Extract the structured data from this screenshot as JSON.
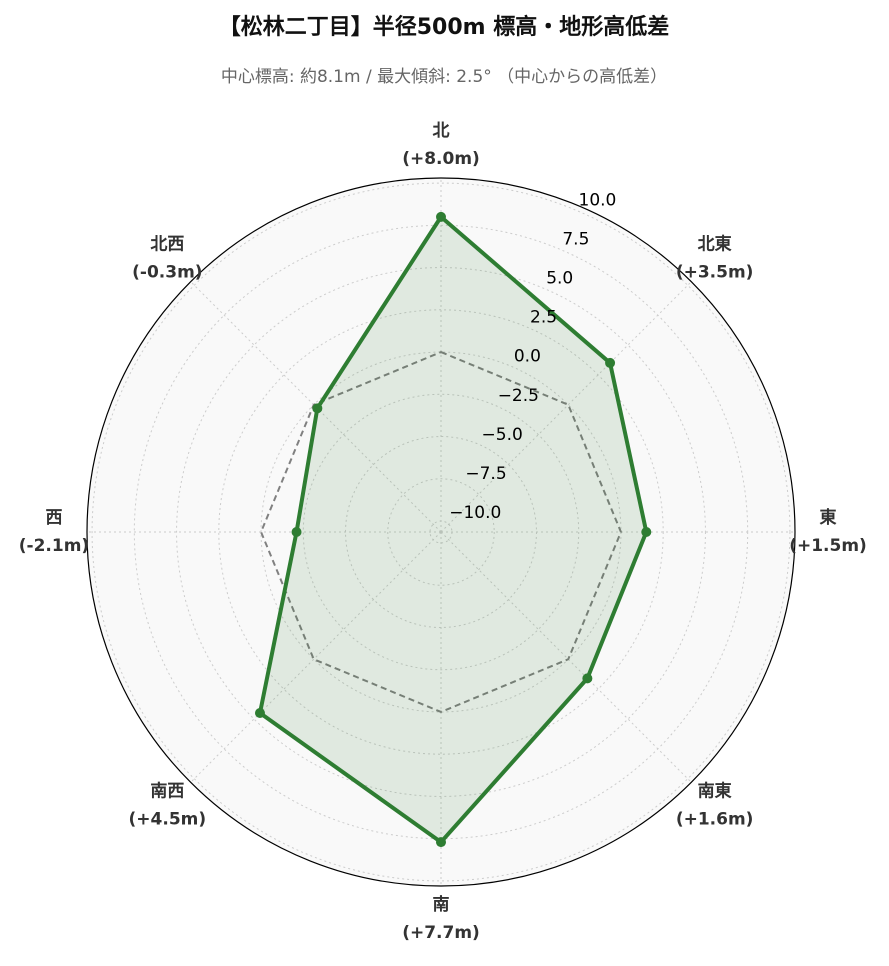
{
  "chart_data": {
    "type": "radar",
    "title": "【松林二丁目】半径500m 標高・地形高低差",
    "subtitle": "中心標高: 約8.1m / 最大傾斜: 2.5° （中心からの高低差）",
    "categories": [
      "北",
      "北東",
      "東",
      "南東",
      "南",
      "南西",
      "西",
      "北西"
    ],
    "series": [
      {
        "color": "#2e7d32",
        "fill": "#2e7d32",
        "style": "solid",
        "values": [
          8.0,
          3.5,
          1.5,
          1.6,
          7.7,
          4.5,
          -2.1,
          -0.3
        ],
        "value_labels": [
          "(+8.0m)",
          "(+3.5m)",
          "(+1.5m)",
          "(+1.6m)",
          "(+7.7m)",
          "(+4.5m)",
          "(-2.1m)",
          "(-0.3m)"
        ]
      },
      {
        "color": "#808080",
        "style": "dashed",
        "values": [
          0,
          0,
          0,
          0,
          0,
          0,
          0,
          0
        ]
      }
    ],
    "ylim": [
      -10.65,
      10.3
    ],
    "yticks": [
      {
        "value": -10,
        "label": "−10.0"
      },
      {
        "value": -7.5,
        "label": "−7.5"
      },
      {
        "value": -5,
        "label": "−5.0"
      },
      {
        "value": -2.5,
        "label": "−2.5"
      },
      {
        "value": 0,
        "label": "0.0"
      },
      {
        "value": 2.5,
        "label": "2.5"
      },
      {
        "value": 5,
        "label": "5.0"
      },
      {
        "value": 7.5,
        "label": "7.5"
      },
      {
        "value": 10,
        "label": "10.0"
      }
    ],
    "grid": true
  }
}
